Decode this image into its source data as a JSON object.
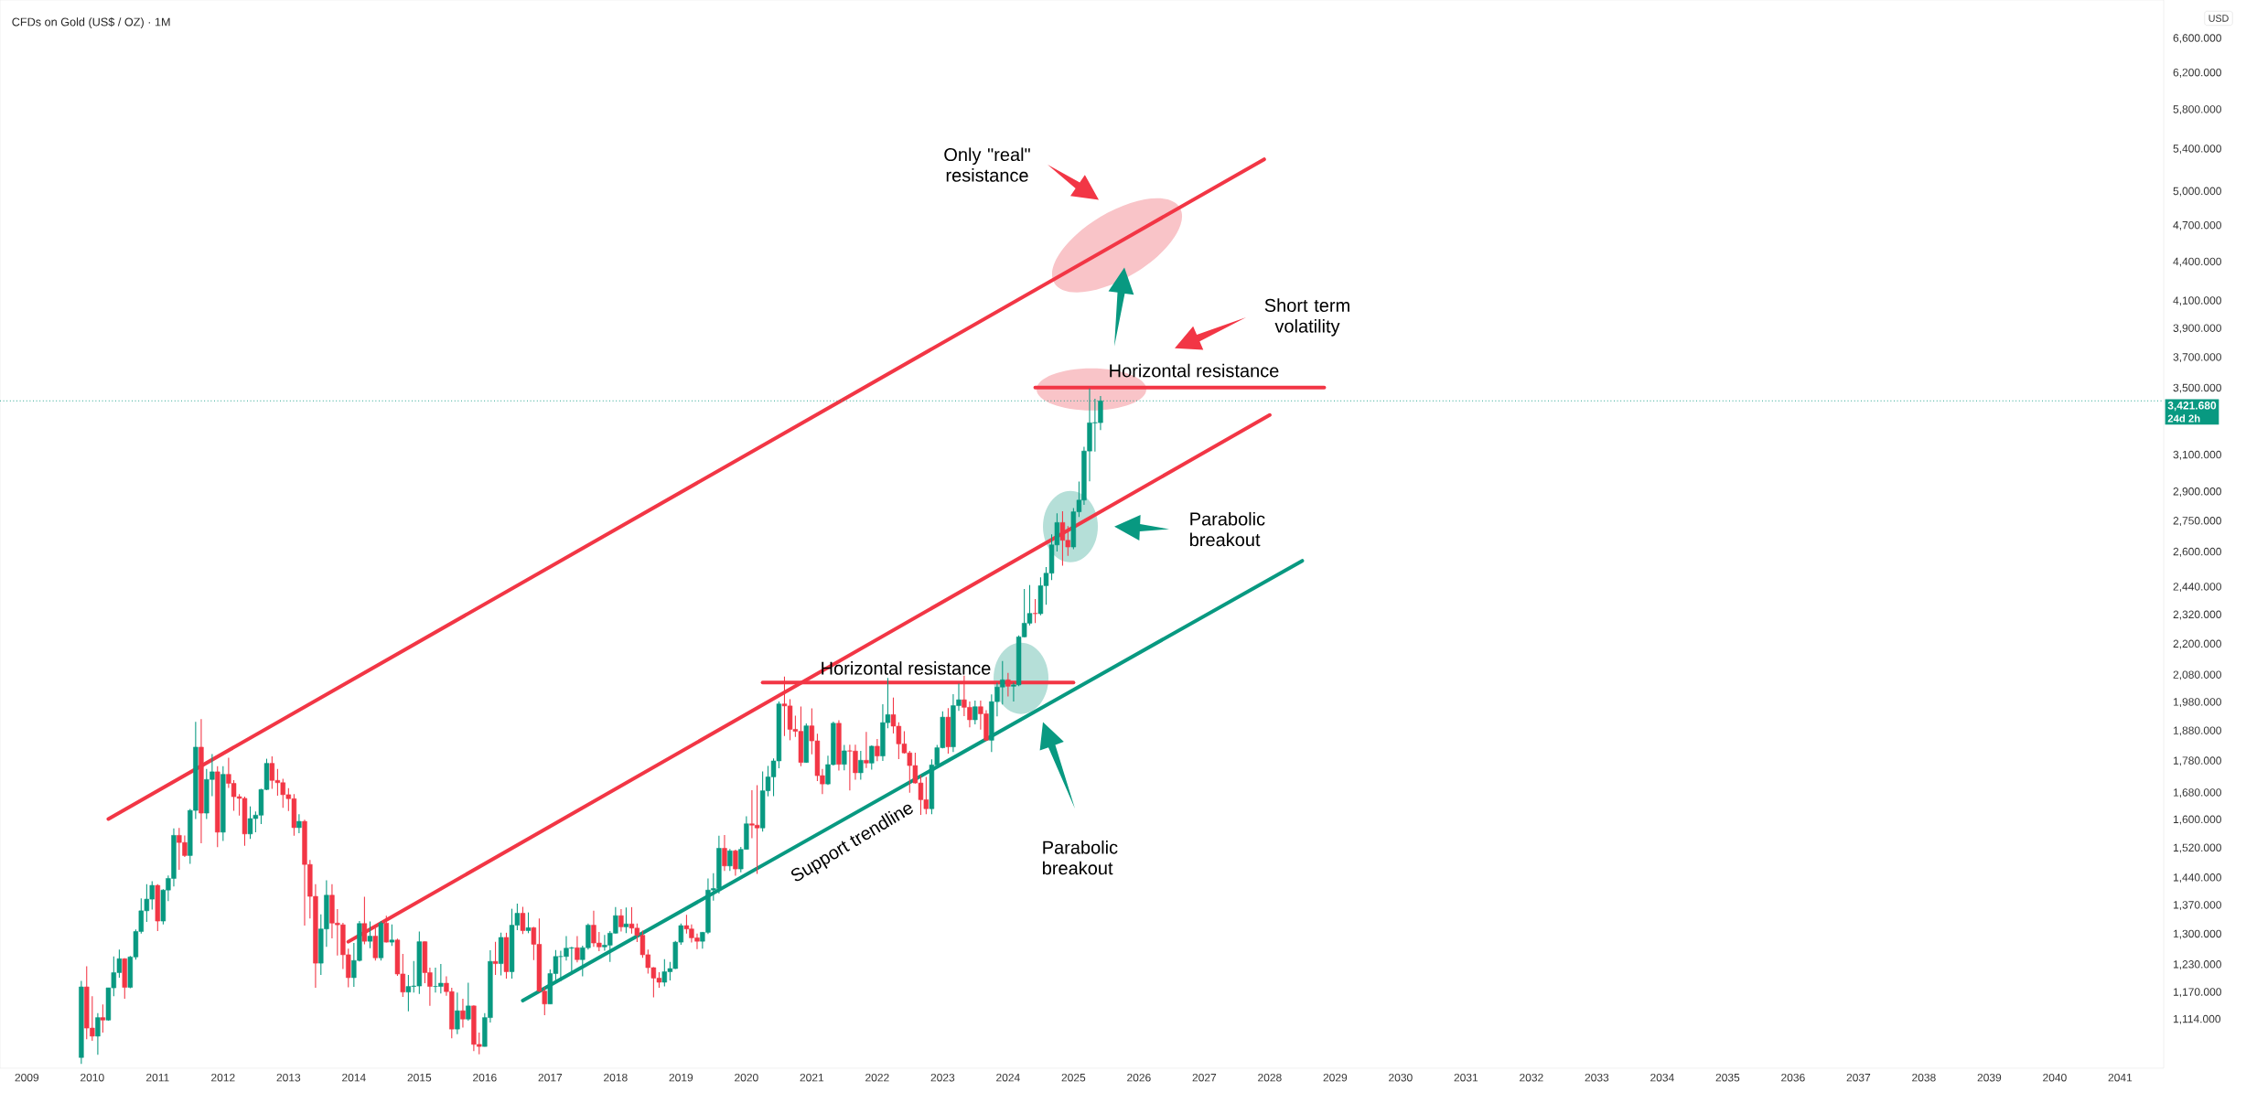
{
  "chart_data": {
    "type": "candlestick",
    "title": "CFDs on Gold (US$ / OZ) · 1M",
    "ylabel": "USD",
    "log": "y",
    "xlim": [
      "2008-08-04",
      "2041-09-01"
    ],
    "ylim": [
      1020,
      7080
    ],
    "xticks": [
      "2009",
      "2010",
      "2011",
      "2012",
      "2013",
      "2014",
      "2015",
      "2016",
      "2017",
      "2018",
      "2019",
      "2020",
      "2021",
      "2022",
      "2023",
      "2024",
      "2025",
      "2026",
      "2027",
      "2028",
      "2029",
      "2030",
      "2031",
      "2032",
      "2033",
      "2034",
      "2035",
      "2036",
      "2037",
      "2038",
      "2039",
      "2040",
      "2041"
    ],
    "yticks": [
      {
        "value": 1114,
        "label": "1,114.000"
      },
      {
        "value": 1170,
        "label": "1,170.000"
      },
      {
        "value": 1230,
        "label": "1,230.000"
      },
      {
        "value": 1300,
        "label": "1,300.000"
      },
      {
        "value": 1370,
        "label": "1,370.000"
      },
      {
        "value": 1440,
        "label": "1,440.000"
      },
      {
        "value": 1520,
        "label": "1,520.000"
      },
      {
        "value": 1600,
        "label": "1,600.000"
      },
      {
        "value": 1680,
        "label": "1,680.000"
      },
      {
        "value": 1780,
        "label": "1,780.000"
      },
      {
        "value": 1880,
        "label": "1,880.000"
      },
      {
        "value": 1980,
        "label": "1,980.000"
      },
      {
        "value": 2080,
        "label": "2,080.000"
      },
      {
        "value": 2200,
        "label": "2,200.000"
      },
      {
        "value": 2320,
        "label": "2,320.000"
      },
      {
        "value": 2440,
        "label": "2,440.000"
      },
      {
        "value": 2600,
        "label": "2,600.000"
      },
      {
        "value": 2750,
        "label": "2,750.000"
      },
      {
        "value": 2900,
        "label": "2,900.000"
      },
      {
        "value": 3100,
        "label": "3,100.000"
      },
      {
        "value": 3500,
        "label": "3,500.000"
      },
      {
        "value": 3700,
        "label": "3,700.000"
      },
      {
        "value": 3900,
        "label": "3,900.000"
      },
      {
        "value": 4100,
        "label": "4,100.000"
      },
      {
        "value": 4400,
        "label": "4,400.000"
      },
      {
        "value": 4700,
        "label": "4,700.000"
      },
      {
        "value": 5000,
        "label": "5,000.000"
      },
      {
        "value": 5400,
        "label": "5,400.000"
      },
      {
        "value": 5800,
        "label": "5,800.000"
      },
      {
        "value": 6200,
        "label": "6,200.000"
      },
      {
        "value": 6600,
        "label": "6,600.000"
      }
    ],
    "x": [
      "2009-11",
      "2009-12",
      "2010-01",
      "2010-02",
      "2010-03",
      "2010-04",
      "2010-05",
      "2010-06",
      "2010-07",
      "2010-08",
      "2010-09",
      "2010-10",
      "2010-11",
      "2010-12",
      "2011-01",
      "2011-02",
      "2011-03",
      "2011-04",
      "2011-05",
      "2011-06",
      "2011-07",
      "2011-08",
      "2011-09",
      "2011-10",
      "2011-11",
      "2011-12",
      "2012-01",
      "2012-02",
      "2012-03",
      "2012-04",
      "2012-05",
      "2012-06",
      "2012-07",
      "2012-08",
      "2012-09",
      "2012-10",
      "2012-11",
      "2012-12",
      "2013-01",
      "2013-02",
      "2013-03",
      "2013-04",
      "2013-05",
      "2013-06",
      "2013-07",
      "2013-08",
      "2013-09",
      "2013-10",
      "2013-11",
      "2013-12",
      "2014-01",
      "2014-02",
      "2014-03",
      "2014-04",
      "2014-05",
      "2014-06",
      "2014-07",
      "2014-08",
      "2014-09",
      "2014-10",
      "2014-11",
      "2014-12",
      "2015-01",
      "2015-02",
      "2015-03",
      "2015-04",
      "2015-05",
      "2015-06",
      "2015-07",
      "2015-08",
      "2015-09",
      "2015-10",
      "2015-11",
      "2015-12",
      "2016-01",
      "2016-02",
      "2016-03",
      "2016-04",
      "2016-05",
      "2016-06",
      "2016-07",
      "2016-08",
      "2016-09",
      "2016-10",
      "2016-11",
      "2016-12",
      "2017-01",
      "2017-02",
      "2017-03",
      "2017-04",
      "2017-05",
      "2017-06",
      "2017-07",
      "2017-08",
      "2017-09",
      "2017-10",
      "2017-11",
      "2017-12",
      "2018-01",
      "2018-02",
      "2018-03",
      "2018-04",
      "2018-05",
      "2018-06",
      "2018-07",
      "2018-08",
      "2018-09",
      "2018-10",
      "2018-11",
      "2018-12",
      "2019-01",
      "2019-02",
      "2019-03",
      "2019-04",
      "2019-05",
      "2019-06",
      "2019-07",
      "2019-08",
      "2019-09",
      "2019-10",
      "2019-11",
      "2019-12",
      "2020-01",
      "2020-02",
      "2020-03",
      "2020-04",
      "2020-05",
      "2020-06",
      "2020-07",
      "2020-08",
      "2020-09",
      "2020-10",
      "2020-11",
      "2020-12",
      "2021-01",
      "2021-02",
      "2021-03",
      "2021-04",
      "2021-05",
      "2021-06",
      "2021-07",
      "2021-08",
      "2021-09",
      "2021-10",
      "2021-11",
      "2021-12",
      "2022-01",
      "2022-02",
      "2022-03",
      "2022-04",
      "2022-05",
      "2022-06",
      "2022-07",
      "2022-08",
      "2022-09",
      "2022-10",
      "2022-11",
      "2022-12",
      "2023-01",
      "2023-02",
      "2023-03",
      "2023-04",
      "2023-05",
      "2023-06",
      "2023-07",
      "2023-08",
      "2023-09",
      "2023-10",
      "2023-11",
      "2023-12",
      "2024-01",
      "2024-02",
      "2024-03",
      "2024-04",
      "2024-05",
      "2024-06",
      "2024-07",
      "2024-08",
      "2024-09",
      "2024-10",
      "2024-11",
      "2024-12",
      "2025-01",
      "2025-02",
      "2025-03",
      "2025-04",
      "2025-05",
      "2025-06"
    ],
    "ohlc": [
      [
        1040,
        1195,
        1028,
        1182
      ],
      [
        1182,
        1227,
        1075,
        1097
      ],
      [
        1097,
        1162,
        1072,
        1081
      ],
      [
        1081,
        1127,
        1045,
        1118
      ],
      [
        1118,
        1145,
        1088,
        1113
      ],
      [
        1113,
        1180,
        1112,
        1180
      ],
      [
        1180,
        1249,
        1162,
        1213
      ],
      [
        1213,
        1265,
        1202,
        1244
      ],
      [
        1244,
        1245,
        1157,
        1181
      ],
      [
        1181,
        1250,
        1179,
        1248
      ],
      [
        1248,
        1312,
        1242,
        1307
      ],
      [
        1307,
        1388,
        1302,
        1357
      ],
      [
        1357,
        1424,
        1330,
        1386
      ],
      [
        1386,
        1432,
        1360,
        1421
      ],
      [
        1421,
        1424,
        1308,
        1332
      ],
      [
        1332,
        1411,
        1324,
        1409
      ],
      [
        1409,
        1447,
        1381,
        1439
      ],
      [
        1439,
        1576,
        1418,
        1556
      ],
      [
        1556,
        1577,
        1462,
        1536
      ],
      [
        1536,
        1556,
        1496,
        1500
      ],
      [
        1500,
        1632,
        1478,
        1628
      ],
      [
        1628,
        1912,
        1603,
        1826
      ],
      [
        1826,
        1921,
        1534,
        1620
      ],
      [
        1620,
        1755,
        1603,
        1722
      ],
      [
        1722,
        1803,
        1671,
        1746
      ],
      [
        1746,
        1764,
        1523,
        1565
      ],
      [
        1565,
        1764,
        1540,
        1738
      ],
      [
        1738,
        1791,
        1696,
        1710
      ],
      [
        1710,
        1720,
        1627,
        1669
      ],
      [
        1669,
        1677,
        1613,
        1664
      ],
      [
        1664,
        1669,
        1527,
        1560
      ],
      [
        1560,
        1640,
        1546,
        1604
      ],
      [
        1604,
        1625,
        1565,
        1614
      ],
      [
        1614,
        1693,
        1588,
        1691
      ],
      [
        1691,
        1788,
        1689,
        1773
      ],
      [
        1773,
        1796,
        1693,
        1719
      ],
      [
        1719,
        1755,
        1672,
        1712
      ],
      [
        1712,
        1724,
        1636,
        1675
      ],
      [
        1675,
        1695,
        1626,
        1663
      ],
      [
        1663,
        1677,
        1555,
        1578
      ],
      [
        1578,
        1617,
        1562,
        1596
      ],
      [
        1596,
        1601,
        1321,
        1476
      ],
      [
        1476,
        1488,
        1338,
        1393
      ],
      [
        1393,
        1424,
        1180,
        1234
      ],
      [
        1234,
        1348,
        1208,
        1313
      ],
      [
        1313,
        1434,
        1271,
        1396
      ],
      [
        1396,
        1424,
        1291,
        1327
      ],
      [
        1327,
        1361,
        1251,
        1323
      ],
      [
        1323,
        1328,
        1221,
        1253
      ],
      [
        1253,
        1267,
        1181,
        1202
      ],
      [
        1202,
        1280,
        1182,
        1240
      ],
      [
        1240,
        1332,
        1238,
        1326
      ],
      [
        1326,
        1392,
        1277,
        1284
      ],
      [
        1284,
        1331,
        1268,
        1296
      ],
      [
        1296,
        1315,
        1240,
        1246
      ],
      [
        1246,
        1332,
        1240,
        1327
      ],
      [
        1327,
        1345,
        1281,
        1282
      ],
      [
        1282,
        1324,
        1273,
        1287
      ],
      [
        1287,
        1290,
        1206,
        1210
      ],
      [
        1210,
        1255,
        1161,
        1171
      ],
      [
        1171,
        1208,
        1131,
        1183
      ],
      [
        1183,
        1239,
        1170,
        1184
      ],
      [
        1184,
        1307,
        1167,
        1283
      ],
      [
        1283,
        1284,
        1190,
        1213
      ],
      [
        1213,
        1224,
        1142,
        1183
      ],
      [
        1183,
        1224,
        1170,
        1183
      ],
      [
        1183,
        1232,
        1168,
        1190
      ],
      [
        1190,
        1205,
        1163,
        1172
      ],
      [
        1172,
        1180,
        1077,
        1095
      ],
      [
        1095,
        1170,
        1085,
        1132
      ],
      [
        1132,
        1157,
        1098,
        1115
      ],
      [
        1115,
        1191,
        1112,
        1142
      ],
      [
        1142,
        1143,
        1052,
        1065
      ],
      [
        1065,
        1088,
        1046,
        1061
      ],
      [
        1061,
        1127,
        1061,
        1118
      ],
      [
        1118,
        1263,
        1108,
        1238
      ],
      [
        1238,
        1283,
        1208,
        1233
      ],
      [
        1233,
        1304,
        1207,
        1293
      ],
      [
        1293,
        1304,
        1200,
        1215
      ],
      [
        1215,
        1362,
        1200,
        1322
      ],
      [
        1322,
        1375,
        1310,
        1351
      ],
      [
        1351,
        1367,
        1301,
        1309
      ],
      [
        1309,
        1353,
        1303,
        1316
      ],
      [
        1316,
        1318,
        1241,
        1277
      ],
      [
        1277,
        1338,
        1171,
        1173
      ],
      [
        1173,
        1181,
        1123,
        1146
      ],
      [
        1146,
        1220,
        1146,
        1211
      ],
      [
        1211,
        1264,
        1194,
        1249
      ],
      [
        1249,
        1262,
        1194,
        1249
      ],
      [
        1249,
        1296,
        1240,
        1268
      ],
      [
        1268,
        1271,
        1214,
        1269
      ],
      [
        1269,
        1296,
        1236,
        1242
      ],
      [
        1242,
        1274,
        1205,
        1269
      ],
      [
        1269,
        1326,
        1265,
        1322
      ],
      [
        1322,
        1357,
        1271,
        1280
      ],
      [
        1280,
        1306,
        1261,
        1271
      ],
      [
        1271,
        1299,
        1262,
        1275
      ],
      [
        1275,
        1308,
        1237,
        1303
      ],
      [
        1303,
        1366,
        1302,
        1345
      ],
      [
        1345,
        1361,
        1307,
        1318
      ],
      [
        1318,
        1365,
        1303,
        1325
      ],
      [
        1325,
        1366,
        1302,
        1315
      ],
      [
        1315,
        1326,
        1282,
        1298
      ],
      [
        1298,
        1309,
        1246,
        1253
      ],
      [
        1253,
        1265,
        1211,
        1224
      ],
      [
        1224,
        1225,
        1160,
        1201
      ],
      [
        1201,
        1214,
        1180,
        1192
      ],
      [
        1192,
        1243,
        1183,
        1215
      ],
      [
        1215,
        1237,
        1196,
        1222
      ],
      [
        1222,
        1285,
        1221,
        1282
      ],
      [
        1282,
        1326,
        1276,
        1321
      ],
      [
        1321,
        1347,
        1302,
        1313
      ],
      [
        1313,
        1324,
        1281,
        1292
      ],
      [
        1292,
        1302,
        1266,
        1284
      ],
      [
        1284,
        1306,
        1267,
        1305
      ],
      [
        1305,
        1439,
        1301,
        1409
      ],
      [
        1409,
        1453,
        1382,
        1413
      ],
      [
        1413,
        1555,
        1400,
        1520
      ],
      [
        1520,
        1557,
        1459,
        1472
      ],
      [
        1472,
        1518,
        1459,
        1513
      ],
      [
        1513,
        1516,
        1446,
        1464
      ],
      [
        1464,
        1524,
        1455,
        1517
      ],
      [
        1517,
        1611,
        1517,
        1589
      ],
      [
        1589,
        1689,
        1548,
        1585
      ],
      [
        1585,
        1704,
        1451,
        1577
      ],
      [
        1577,
        1747,
        1567,
        1687
      ],
      [
        1687,
        1765,
        1670,
        1730
      ],
      [
        1730,
        1789,
        1671,
        1781
      ],
      [
        1781,
        1984,
        1757,
        1975
      ],
      [
        1975,
        2075,
        1863,
        1968
      ],
      [
        1968,
        1992,
        1849,
        1886
      ],
      [
        1886,
        1933,
        1860,
        1879
      ],
      [
        1879,
        1966,
        1764,
        1776
      ],
      [
        1776,
        1906,
        1775,
        1898
      ],
      [
        1898,
        1959,
        1802,
        1847
      ],
      [
        1847,
        1871,
        1717,
        1734
      ],
      [
        1734,
        1755,
        1677,
        1708
      ],
      [
        1708,
        1798,
        1705,
        1769
      ],
      [
        1769,
        1913,
        1766,
        1907
      ],
      [
        1907,
        1917,
        1750,
        1770
      ],
      [
        1770,
        1833,
        1751,
        1814
      ],
      [
        1814,
        1834,
        1688,
        1813
      ],
      [
        1813,
        1834,
        1721,
        1743
      ],
      [
        1743,
        1814,
        1721,
        1783
      ],
      [
        1783,
        1877,
        1758,
        1774
      ],
      [
        1774,
        1832,
        1753,
        1829
      ],
      [
        1829,
        1853,
        1780,
        1797
      ],
      [
        1797,
        1974,
        1781,
        1909
      ],
      [
        1909,
        2070,
        1890,
        1937
      ],
      [
        1937,
        1998,
        1872,
        1897
      ],
      [
        1897,
        1910,
        1787,
        1837
      ],
      [
        1837,
        1879,
        1805,
        1807
      ],
      [
        1807,
        1814,
        1681,
        1766
      ],
      [
        1766,
        1808,
        1709,
        1711
      ],
      [
        1711,
        1735,
        1615,
        1660
      ],
      [
        1660,
        1730,
        1617,
        1633
      ],
      [
        1633,
        1786,
        1617,
        1768
      ],
      [
        1768,
        1833,
        1765,
        1824
      ],
      [
        1824,
        1949,
        1822,
        1928
      ],
      [
        1928,
        1960,
        1805,
        1827
      ],
      [
        1827,
        2010,
        1810,
        1969
      ],
      [
        1969,
        2049,
        1950,
        1990
      ],
      [
        1990,
        2079,
        1932,
        1963
      ],
      [
        1963,
        1984,
        1893,
        1919
      ],
      [
        1919,
        1987,
        1903,
        1965
      ],
      [
        1965,
        1987,
        1885,
        1940
      ],
      [
        1940,
        1953,
        1846,
        1849
      ],
      [
        1849,
        2009,
        1810,
        1983
      ],
      [
        1983,
        2052,
        1931,
        2036
      ],
      [
        2036,
        2135,
        1973,
        2063
      ],
      [
        2063,
        2089,
        2002,
        2039
      ],
      [
        2039,
        2053,
        1984,
        2044
      ],
      [
        2044,
        2236,
        2039,
        2230
      ],
      [
        2230,
        2432,
        2229,
        2286
      ],
      [
        2286,
        2450,
        2277,
        2327
      ],
      [
        2327,
        2388,
        2287,
        2326
      ],
      [
        2326,
        2484,
        2319,
        2447
      ],
      [
        2447,
        2531,
        2364,
        2503
      ],
      [
        2503,
        2686,
        2472,
        2635
      ],
      [
        2635,
        2790,
        2604,
        2744
      ],
      [
        2744,
        2801,
        2537,
        2657
      ],
      [
        2657,
        2726,
        2583,
        2625
      ],
      [
        2625,
        2817,
        2614,
        2798
      ],
      [
        2798,
        2956,
        2772,
        2858
      ],
      [
        2858,
        3148,
        2833,
        3124
      ],
      [
        3124,
        3500,
        2957,
        3288
      ],
      [
        3288,
        3435,
        3121,
        3289
      ],
      [
        3289,
        3452,
        3245,
        3421.68
      ]
    ],
    "series": [
      {
        "type": "line",
        "color": "#f23645",
        "x": [
          "2010-04",
          "2027-12"
        ],
        "values": [
          1603,
          5302
        ]
      },
      {
        "type": "line",
        "color": "#f23645",
        "x": [
          "2013-12",
          "2028-01"
        ],
        "values": [
          1283,
          3335
        ]
      },
      {
        "type": "line",
        "color": "#089981",
        "x": [
          "2016-08",
          "2028-07"
        ],
        "values": [
          1153,
          2560
        ]
      },
      {
        "type": "line",
        "color": "#f23645",
        "x": [
          "2020-04",
          "2025-01"
        ],
        "values": [
          2053,
          2053
        ]
      },
      {
        "type": "line",
        "color": "#f23645",
        "x": [
          "2024-06",
          "2028-11"
        ],
        "values": [
          3505,
          3505
        ]
      }
    ],
    "ref_lines": [
      {
        "axis": "y",
        "value": 3421.68,
        "label": "3,421.680",
        "color": "#089981",
        "line_style": "dotted"
      }
    ],
    "annotations": [
      "Horizontal resistance",
      "Horizontal resistance",
      "Support trendline",
      "Parabolic breakout",
      "Parabolic breakout",
      "Only \"real\" resistance",
      "Short term volatility",
      "24d 2h"
    ]
  }
}
